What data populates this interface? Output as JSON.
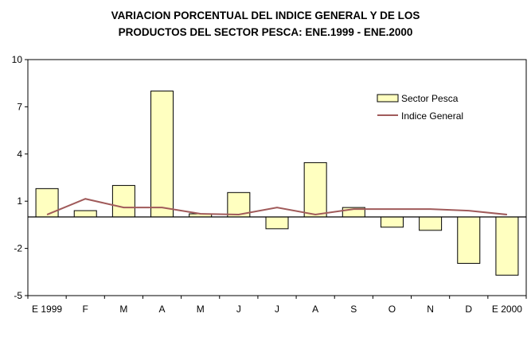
{
  "chart_data": {
    "type": "bar",
    "title_line1": "VARIACION PORCENTUAL DEL INDICE GENERAL Y DE LOS",
    "title_line2": "PRODUCTOS DEL SECTOR PESCA: ENE.1999 - ENE.2000",
    "categories": [
      "E 1999",
      "F",
      "M",
      "A",
      "M",
      "J",
      "J",
      "A",
      "S",
      "O",
      "N",
      "D",
      "E 2000"
    ],
    "ylim": [
      -5,
      10
    ],
    "yticks": [
      10,
      7,
      4,
      1,
      -2,
      -5
    ],
    "xlabel": "",
    "ylabel": "",
    "legend_position": "top-right",
    "grid": false,
    "series": [
      {
        "name": "Sector Pesca",
        "type": "bar",
        "color": "#ffffc0",
        "values": [
          1.8,
          0.4,
          2.0,
          8.0,
          0.2,
          1.55,
          -0.75,
          3.45,
          0.6,
          -0.65,
          -0.85,
          -2.95,
          -3.7
        ]
      },
      {
        "name": "Indice General",
        "type": "line",
        "color": "#a05a5a",
        "values": [
          0.15,
          1.15,
          0.6,
          0.6,
          0.2,
          0.15,
          0.6,
          0.15,
          0.5,
          0.5,
          0.5,
          0.4,
          0.15
        ]
      }
    ]
  }
}
